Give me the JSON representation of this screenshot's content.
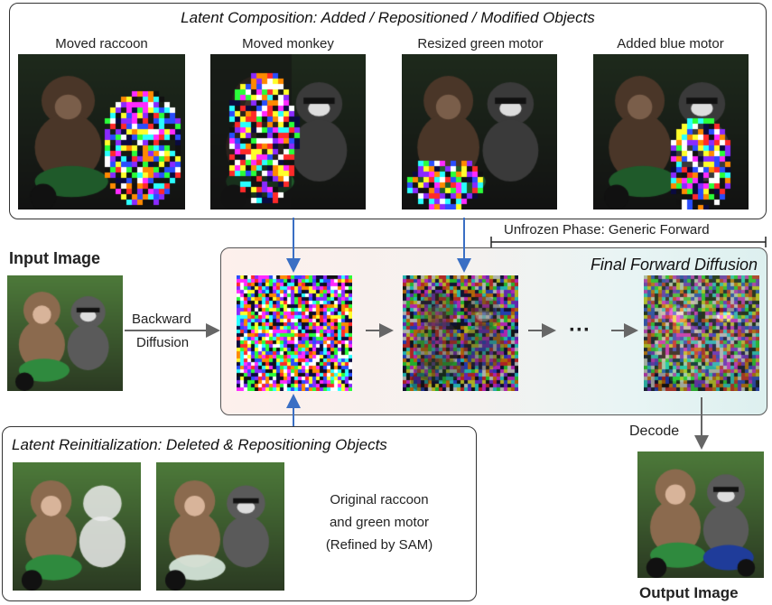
{
  "top_panel": {
    "title": "Latent Composition: Added / Repositioned / Modified Objects",
    "captions": [
      "Moved raccoon",
      "Moved monkey",
      "Resized green motor",
      "Added blue motor"
    ]
  },
  "unfrozen_phase": "Unfrozen Phase: Generic Forward",
  "final_panel": {
    "title": "Final Forward Diffusion",
    "ellipsis": "···"
  },
  "input": {
    "title": "Input Image"
  },
  "backward": {
    "line1": "Backward",
    "line2": "Diffusion"
  },
  "bottom_panel": {
    "title": "Latent Reinitialization: Deleted & Repositioning Objects",
    "note_lines": [
      "Original raccoon",
      "and green motor",
      "(Refined by SAM)"
    ]
  },
  "decode": "Decode",
  "output": {
    "title": "Output Image"
  },
  "colors": {
    "arrow_blue": "#3a6fc4",
    "arrow_gray": "#666666"
  }
}
